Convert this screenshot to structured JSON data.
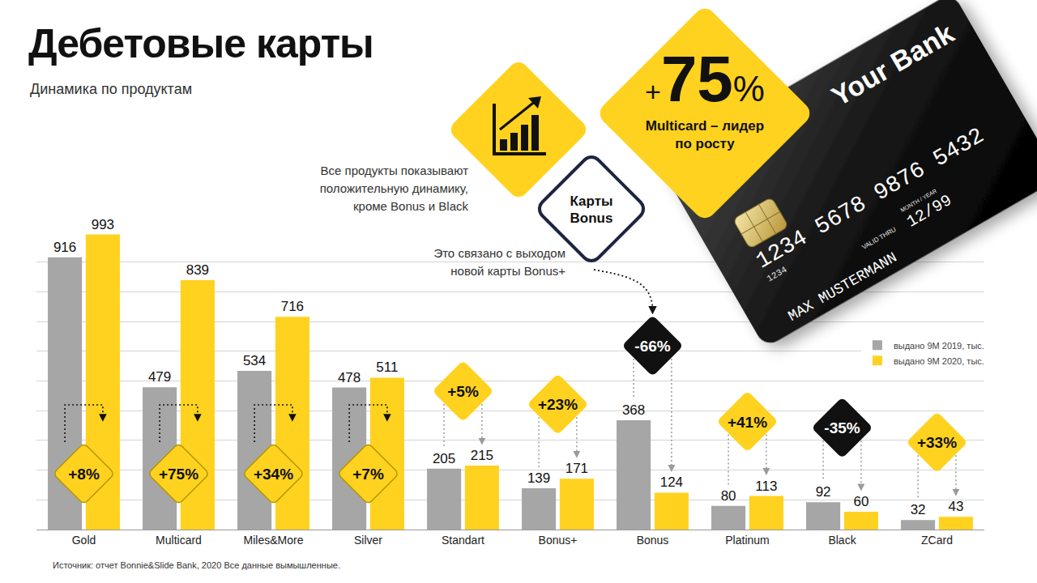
{
  "chart_data": {
    "type": "bar",
    "title": "Дебетовые карты",
    "subtitle": "Динамика по продуктам",
    "source": "Источник: отчет Bonnie&Slide Bank, 2020 Все данные вымышленные.",
    "categories": [
      "Gold",
      "Multicard",
      "Miles&More",
      "Silver",
      "Standart",
      "Bonus+",
      "Bonus",
      "Platinum",
      "Black",
      "ZCard"
    ],
    "series": [
      {
        "name": "выдано 9M 2019, тыс.",
        "color": "#a6a6a6",
        "values": [
          916,
          479,
          534,
          478,
          205,
          139,
          368,
          80,
          92,
          32
        ]
      },
      {
        "name": "выдано 9M 2020, тыс.",
        "color": "#ffd21f",
        "values": [
          993,
          839,
          716,
          511,
          215,
          171,
          124,
          113,
          60,
          43
        ]
      }
    ],
    "changes": [
      {
        "value": 8,
        "label": "+8%"
      },
      {
        "value": 75,
        "label": "+75%"
      },
      {
        "value": 34,
        "label": "+34%"
      },
      {
        "value": 7,
        "label": "+7%"
      },
      {
        "value": 5,
        "label": "+5%"
      },
      {
        "value": 23,
        "label": "+23%"
      },
      {
        "value": -66,
        "label": "-66%"
      },
      {
        "value": 41,
        "label": "+41%"
      },
      {
        "value": -35,
        "label": "-35%"
      },
      {
        "value": 33,
        "label": "+33%"
      }
    ],
    "annotations": {
      "leader": {
        "label": "+75%",
        "text": "Multicard – лидер по росту"
      },
      "summary": "Все продукты показывают положительную динамику, кроме Bonus и Black",
      "bonus": {
        "label": "Карты Bonus",
        "text": "Это связано с выходом новой карты Bonus+",
        "category": "Bonus"
      }
    },
    "ylim": [
      0,
      1000
    ],
    "yticks": [
      0,
      100,
      200,
      300,
      400,
      500,
      600,
      700,
      800,
      900,
      1000
    ],
    "grid": true,
    "data_labels": true,
    "tick_labels": "x",
    "legend": "right"
  },
  "card": {
    "bank": "Your Bank",
    "number": "1234 5678 9876 5432",
    "number_small": "1234",
    "month_year": "MONTH / YEAR",
    "valid": "VALID THRU",
    "expiry": "12/99",
    "holder": "MAX MUSTERMANN"
  }
}
